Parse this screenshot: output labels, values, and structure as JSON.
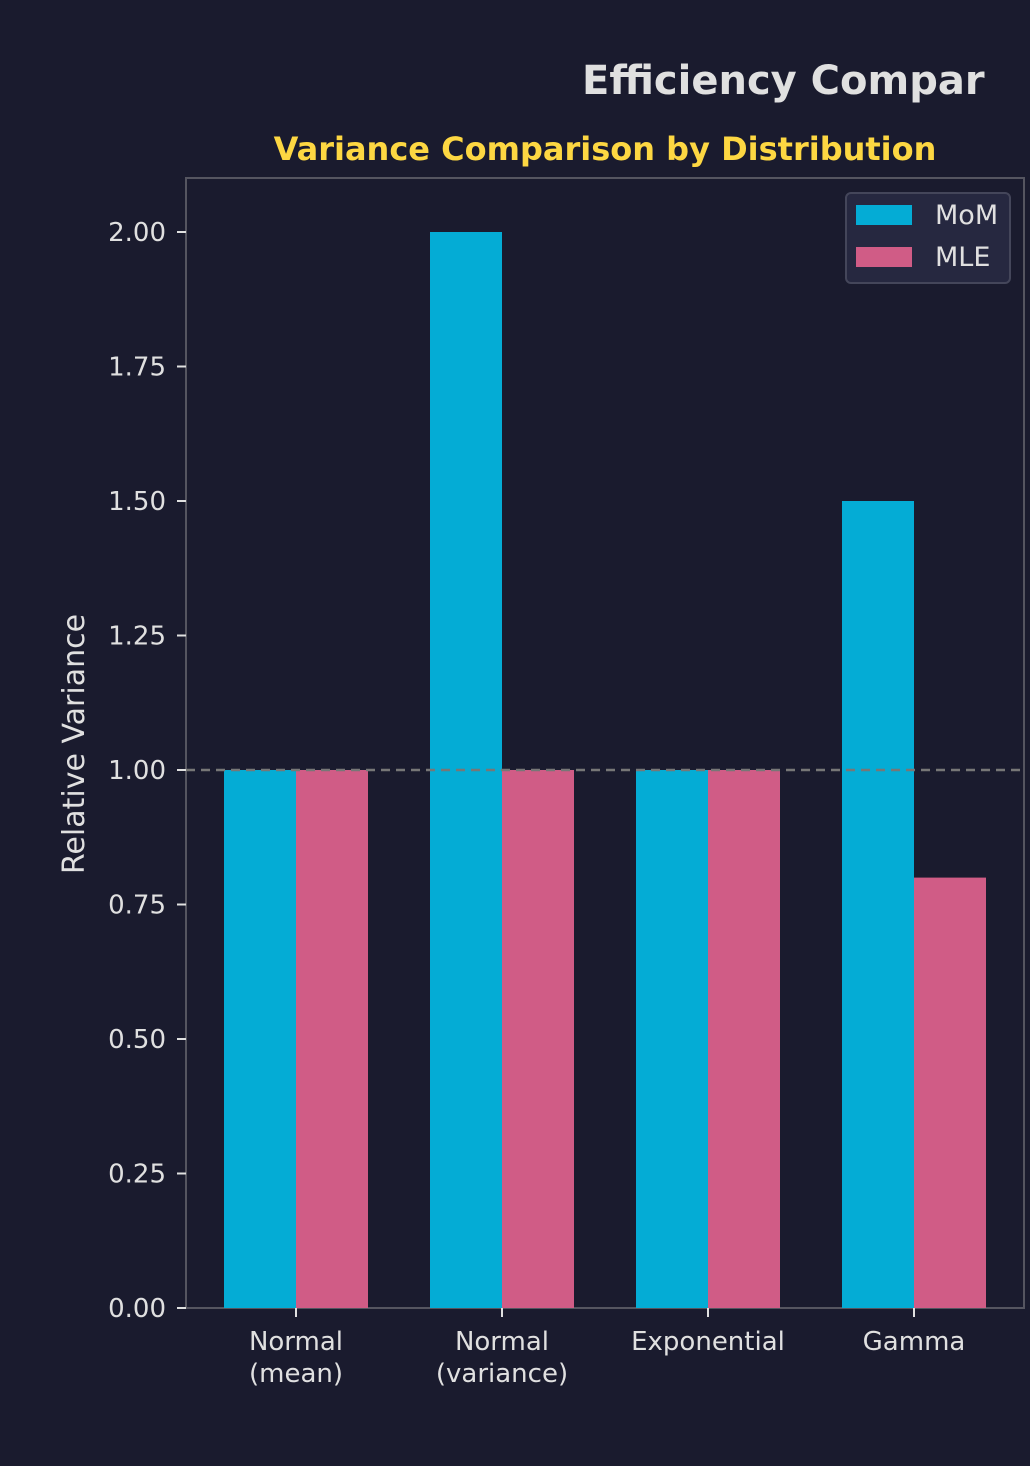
{
  "figure_title": "Efficiency Compar",
  "chart_data": {
    "type": "bar",
    "title": "Variance Comparison by Distribution",
    "xlabel": "",
    "ylabel": "Relative Variance",
    "categories": [
      [
        "Normal",
        "(mean)"
      ],
      [
        "Normal",
        "(variance)"
      ],
      [
        "Exponential"
      ],
      [
        "Gamma"
      ]
    ],
    "series": [
      {
        "name": "MoM",
        "values": [
          1.0,
          2.0,
          1.0,
          1.5
        ],
        "color": "#04acd5"
      },
      {
        "name": "MLE",
        "values": [
          1.0,
          1.0,
          1.0,
          0.8
        ],
        "color": "#d05c86"
      }
    ],
    "ylim": [
      0,
      2.1
    ],
    "yticks": [
      "0.00",
      "0.25",
      "0.50",
      "0.75",
      "1.00",
      "1.25",
      "1.50",
      "1.75",
      "2.00"
    ],
    "reference_line": 1.0,
    "grid": false,
    "legend_position": "top-right"
  },
  "colors": {
    "background": "#1a1b2e",
    "text": "#e0e0e0",
    "subtitle": "#fdd742",
    "axis": "#555560",
    "reference": "#777777",
    "legend_bg": "#262840",
    "legend_border": "#44465a"
  }
}
